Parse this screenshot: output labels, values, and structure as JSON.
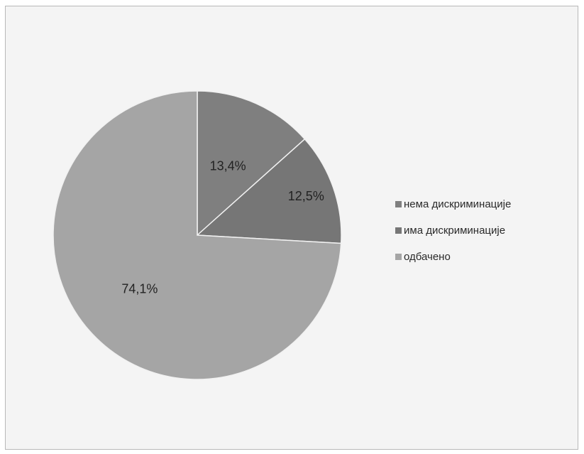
{
  "chart_data": {
    "type": "pie",
    "slices": [
      {
        "label": "нема дискриминације",
        "value": 13.4,
        "display": "13,4%",
        "color": "#7f7f7f"
      },
      {
        "label": "има дискриминације",
        "value": 12.5,
        "display": "12,5%",
        "color": "#767676"
      },
      {
        "label": "одбачено",
        "value": 74.1,
        "display": "74,1%",
        "color": "#a5a5a5"
      }
    ],
    "start_angle_deg": 0,
    "direction": "clockwise",
    "legend_position": "right"
  }
}
